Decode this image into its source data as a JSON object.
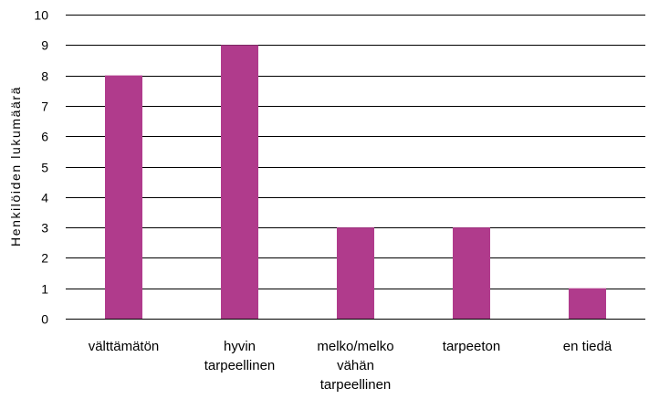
{
  "chart_data": {
    "type": "bar",
    "title": "",
    "xlabel": "",
    "ylabel": "Henkilöiden lukumäärä",
    "categories": [
      [
        "välttämätön"
      ],
      [
        "hyvin",
        "tarpeellinen"
      ],
      [
        "melko/melko",
        "vähän",
        "tarpeellinen"
      ],
      [
        "tarpeeton"
      ],
      [
        "en tiedä"
      ]
    ],
    "values": [
      8,
      9,
      3,
      3,
      1
    ],
    "ylim": [
      0,
      10
    ],
    "yticks": [
      "0",
      "1",
      "2",
      "3",
      "4",
      "5",
      "6",
      "7",
      "8",
      "9",
      "10"
    ],
    "grid": true,
    "legend": "none",
    "bar_color": "#b03b8c",
    "grid_color": "#000000"
  }
}
